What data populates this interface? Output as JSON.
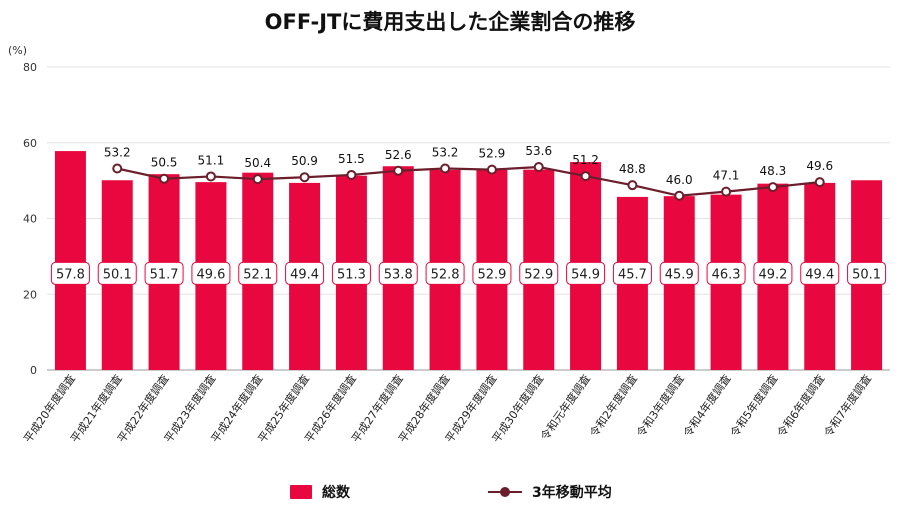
{
  "chart_data": {
    "type": "bar",
    "title": "OFF-JTに費用支出した企業割合の推移",
    "unit_label": "(%)",
    "ylim": [
      0,
      80
    ],
    "yticks": [
      0,
      20,
      40,
      60,
      80
    ],
    "grid": true,
    "legend_position": "bottom",
    "categories": [
      "平成20年度調査",
      "平成21年度調査",
      "平成22年度調査",
      "平成23年度調査",
      "平成24年度調査",
      "平成25年度調査",
      "平成26年度調査",
      "平成27年度調査",
      "平成28年度調査",
      "平成29年度調査",
      "平成30年度調査",
      "令和元年度調査",
      "令和2年度調査",
      "令和3年度調査",
      "令和4年度調査",
      "令和5年度調査",
      "令和6年度調査",
      "令和7年度調査"
    ],
    "series": [
      {
        "name": "総数",
        "type": "bar",
        "color": "#e8083f",
        "values": [
          57.8,
          50.1,
          51.7,
          49.6,
          52.1,
          49.4,
          51.3,
          53.8,
          52.8,
          52.9,
          52.9,
          54.9,
          45.7,
          45.9,
          46.3,
          49.2,
          49.4,
          50.1
        ],
        "labels": [
          "57.8",
          "50.1",
          "51.7",
          "49.6",
          "52.1",
          "49.4",
          "51.3",
          "53.8",
          "52.8",
          "52.9",
          "52.9",
          "54.9",
          "45.7",
          "45.9",
          "46.3",
          "49.2",
          "49.4",
          "50.1"
        ]
      },
      {
        "name": "3年移動平均",
        "type": "line",
        "color": "#6b1e2b",
        "values": [
          null,
          53.2,
          50.5,
          51.1,
          50.4,
          50.9,
          51.5,
          52.6,
          53.2,
          52.9,
          53.6,
          51.2,
          48.8,
          46.0,
          47.1,
          48.3,
          49.6,
          null
        ],
        "labels": [
          null,
          "53.2",
          "50.5",
          "51.1",
          "50.4",
          "50.9",
          "51.5",
          "52.6",
          "53.2",
          "52.9",
          "53.6",
          "51.2",
          "48.8",
          "46.0",
          "47.1",
          "48.3",
          "49.6",
          null
        ]
      }
    ]
  }
}
